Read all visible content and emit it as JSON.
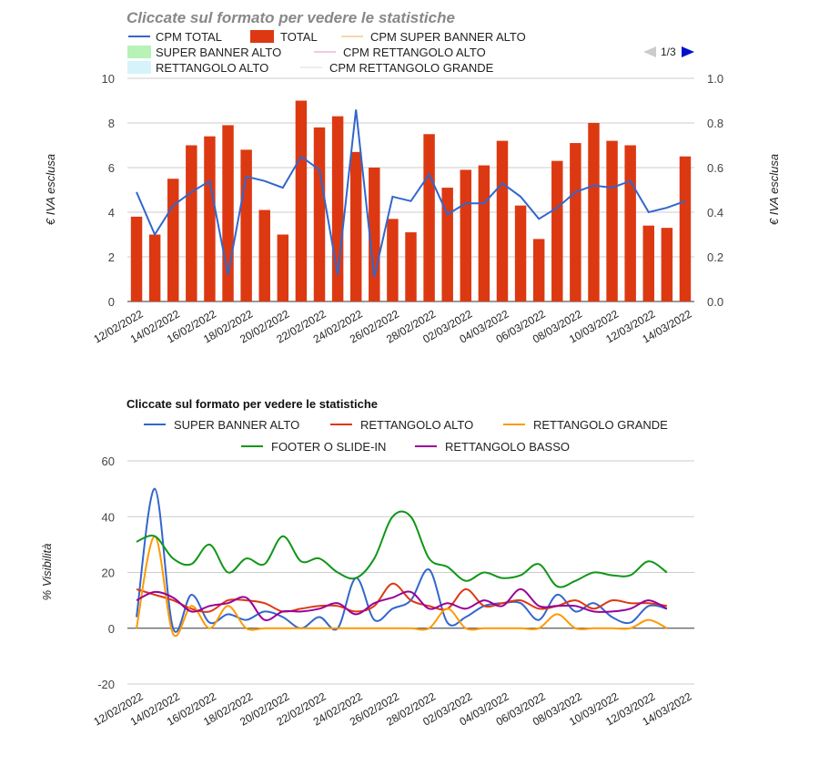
{
  "chart_data": [
    {
      "type": "bar",
      "title": "Cliccate sul formato per vedere le statistiche",
      "ylabel": "€ IVA esclusa",
      "ylabel_right": "€ IVA esclusa",
      "ylim": [
        0,
        10
      ],
      "ylim_right": [
        0,
        1.0
      ],
      "yticks": [
        "0",
        "2",
        "4",
        "6",
        "8",
        "10"
      ],
      "yticks_right": [
        "0.0",
        "0.2",
        "0.4",
        "0.6",
        "0.8",
        "1.0"
      ],
      "x_tick_labels": [
        "12/02/2022",
        "14/02/2022",
        "16/02/2022",
        "18/02/2022",
        "20/02/2022",
        "22/02/2022",
        "24/02/2022",
        "26/02/2022",
        "28/02/2022",
        "02/03/2022",
        "04/03/2022",
        "06/03/2022",
        "08/03/2022",
        "10/03/2022",
        "12/03/2022",
        "14/03/2022"
      ],
      "categories": [
        "12/02/2022",
        "13/02/2022",
        "14/02/2022",
        "15/02/2022",
        "16/02/2022",
        "17/02/2022",
        "18/02/2022",
        "19/02/2022",
        "20/02/2022",
        "21/02/2022",
        "22/02/2022",
        "23/02/2022",
        "24/02/2022",
        "25/02/2022",
        "26/02/2022",
        "27/02/2022",
        "28/02/2022",
        "01/03/2022",
        "02/03/2022",
        "03/03/2022",
        "04/03/2022",
        "05/03/2022",
        "06/03/2022",
        "07/03/2022",
        "08/03/2022",
        "09/03/2022",
        "10/03/2022",
        "11/03/2022",
        "12/03/2022",
        "13/03/2022",
        "14/03/2022"
      ],
      "legend_page": "1/3",
      "legend": [
        {
          "name": "CPM TOTAL",
          "color": "#3366cc",
          "kind": "line"
        },
        {
          "name": "TOTAL",
          "color": "#dc3912",
          "kind": "box"
        },
        {
          "name": "CPM SUPER BANNER ALTO",
          "color": "#f5d9a8",
          "kind": "line"
        },
        {
          "name": "SUPER BANNER ALTO",
          "color": "#b7f2b7",
          "kind": "box"
        },
        {
          "name": "CPM RETTANGOLO ALTO",
          "color": "#f2c9e0",
          "kind": "line"
        },
        {
          "name": "RETTANGOLO ALTO",
          "color": "#d6f3fb",
          "kind": "box"
        },
        {
          "name": "CPM RETTANGOLO GRANDE",
          "color": "#eeeeee",
          "kind": "line"
        }
      ],
      "series": [
        {
          "name": "TOTAL",
          "axis": "left",
          "type": "bar",
          "color": "#dc3912",
          "values": [
            3.8,
            3.0,
            5.5,
            7.0,
            7.4,
            7.9,
            6.8,
            4.1,
            3.0,
            9.0,
            7.8,
            8.3,
            6.7,
            6.0,
            3.7,
            3.1,
            7.5,
            5.1,
            5.9,
            6.1,
            7.2,
            4.3,
            2.8,
            6.3,
            7.1,
            8.0,
            7.2,
            7.0,
            3.4,
            3.3,
            6.5
          ]
        },
        {
          "name": "CPM TOTAL",
          "axis": "right",
          "type": "line",
          "color": "#3366cc",
          "values": [
            0.49,
            0.3,
            0.43,
            0.49,
            0.54,
            0.12,
            0.56,
            0.54,
            0.51,
            0.65,
            0.59,
            0.12,
            0.86,
            0.11,
            0.47,
            0.45,
            0.57,
            0.39,
            0.44,
            0.44,
            0.53,
            0.47,
            0.37,
            0.42,
            0.49,
            0.52,
            0.51,
            0.54,
            0.4,
            0.42,
            0.45
          ]
        }
      ]
    },
    {
      "type": "line",
      "title": "Cliccate sul formato per vedere le statistiche",
      "ylabel": "% Visibilità",
      "ylim": [
        -20,
        60
      ],
      "yticks": [
        "-20",
        "0",
        "20",
        "40",
        "60"
      ],
      "x_tick_labels": [
        "12/02/2022",
        "14/02/2022",
        "16/02/2022",
        "18/02/2022",
        "20/02/2022",
        "22/02/2022",
        "24/02/2022",
        "26/02/2022",
        "28/02/2022",
        "02/03/2022",
        "04/03/2022",
        "06/03/2022",
        "08/03/2022",
        "10/03/2022",
        "12/03/2022",
        "14/03/2022"
      ],
      "series": [
        {
          "name": "SUPER BANNER ALTO",
          "color": "#3366cc",
          "values": [
            4,
            50,
            0,
            12,
            2,
            5,
            3,
            6,
            4,
            0,
            4,
            0,
            18,
            3,
            7,
            10,
            21,
            2,
            4,
            8,
            9,
            9,
            3,
            12,
            6,
            9,
            4,
            2,
            8,
            7
          ]
        },
        {
          "name": "RETTANGOLO ALTO",
          "color": "#dc3912",
          "values": [
            14,
            12,
            10,
            7,
            6,
            10,
            10,
            9,
            6,
            7,
            8,
            8,
            6,
            8,
            16,
            10,
            8,
            7,
            14,
            8,
            9,
            10,
            7,
            8,
            10,
            7,
            10,
            9,
            9,
            8
          ]
        },
        {
          "name": "RETTANGOLO GRANDE",
          "color": "#ff9900",
          "values": [
            0,
            33,
            -2,
            8,
            0,
            8,
            0,
            0,
            0,
            0,
            0,
            0,
            0,
            0,
            0,
            0,
            0,
            7,
            0,
            0,
            0,
            0,
            0,
            5,
            0,
            0,
            0,
            0,
            3,
            0
          ]
        },
        {
          "name": "FOOTER O SLIDE-IN",
          "color": "#109618",
          "values": [
            31,
            33,
            25,
            23,
            30,
            20,
            25,
            23,
            33,
            24,
            25,
            20,
            18,
            25,
            40,
            40,
            25,
            22,
            17,
            20,
            18,
            19,
            23,
            15,
            17,
            20,
            19,
            19,
            24,
            20
          ]
        },
        {
          "name": "RETTANGOLO BASSO",
          "color": "#990099",
          "values": [
            10,
            13,
            11,
            6,
            8,
            9,
            11,
            3,
            6,
            6,
            7,
            9,
            5,
            9,
            11,
            13,
            7,
            9,
            7,
            10,
            8,
            14,
            8,
            8,
            8,
            6,
            6,
            7,
            10,
            7
          ]
        }
      ]
    }
  ]
}
